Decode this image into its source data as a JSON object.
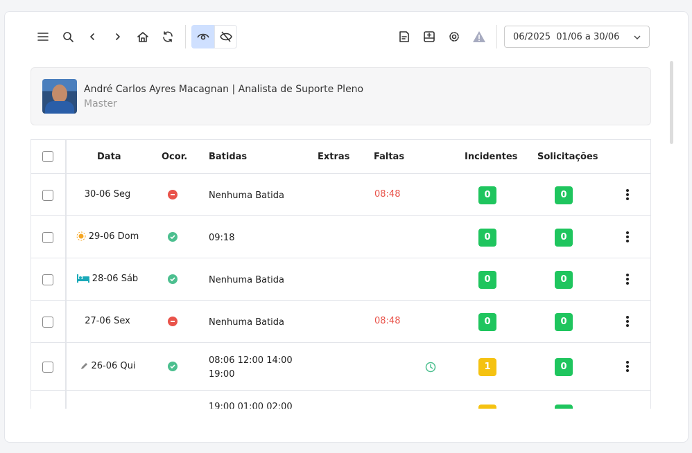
{
  "toolbar": {
    "period": "06/2025  01/06 a 30/06"
  },
  "user": {
    "name": "André Carlos Ayres Macagnan | Analista de Suporte Pleno",
    "role": "Master"
  },
  "table": {
    "headers": [
      "Data",
      "Ocor.",
      "Batidas",
      "Extras",
      "Faltas",
      "Incidentes",
      "Solicitações"
    ],
    "rows": [
      {
        "date": "30-06 Seg",
        "batidas": "Nenhuma Batida",
        "faltas": "08:48",
        "incidentes": 0,
        "solicitacoes": 0
      },
      {
        "date": "29-06 Dom",
        "batidas": "09:18",
        "incidentes": 0,
        "solicitacoes": 0
      },
      {
        "date": "28-06 Sáb",
        "batidas": "Nenhuma Batida",
        "incidentes": 0,
        "solicitacoes": 0
      },
      {
        "date": "27-06 Sex",
        "batidas": "Nenhuma Batida",
        "faltas": "08:48",
        "incidentes": 0,
        "solicitacoes": 0
      },
      {
        "date": "26-06 Qui",
        "batidas": "08:06 12:00 14:00 19:00",
        "incidentes": 1,
        "solicitacoes": 0
      },
      {
        "batidas": "19:00 01:00 02:00"
      }
    ]
  }
}
